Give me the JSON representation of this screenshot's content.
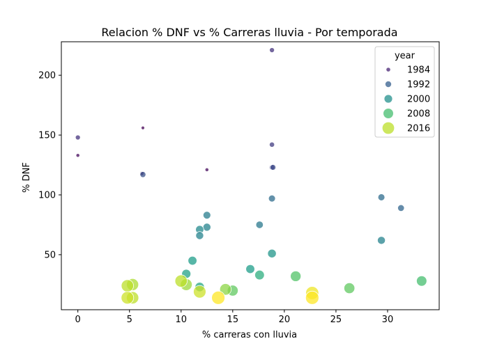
{
  "chart_data": {
    "type": "scatter",
    "title": "Relacion % DNF vs % Carreras lluvia - Por temporada",
    "xlabel": "% carreras con lluvia",
    "ylabel": "% DNF",
    "xlim": [
      -1.6,
      35.0
    ],
    "ylim": [
      4,
      228
    ],
    "xticks": [
      0,
      5,
      10,
      15,
      20,
      25,
      30
    ],
    "yticks": [
      50,
      100,
      150,
      200
    ],
    "grid": false,
    "legend": {
      "title": "year",
      "placement": "top-right",
      "entries": [
        {
          "label": "1984",
          "year": 1984
        },
        {
          "label": "1992",
          "year": 1992
        },
        {
          "label": "2000",
          "year": 2000
        },
        {
          "label": "2008",
          "year": 2008
        },
        {
          "label": "2016",
          "year": 2016
        }
      ]
    },
    "colormap": "viridis",
    "year_range": [
      1980,
      2020
    ],
    "points": [
      {
        "x": 0.0,
        "y": 133,
        "year": 1981
      },
      {
        "x": 6.3,
        "y": 156,
        "year": 1980
      },
      {
        "x": 12.5,
        "y": 121,
        "year": 1981
      },
      {
        "x": 6.2,
        "y": 118,
        "year": 1983
      },
      {
        "x": 18.8,
        "y": 221,
        "year": 1986
      },
      {
        "x": 0.0,
        "y": 148,
        "year": 1986
      },
      {
        "x": 18.8,
        "y": 142,
        "year": 1987
      },
      {
        "x": 18.8,
        "y": 123,
        "year": 1988
      },
      {
        "x": 18.9,
        "y": 123,
        "year": 1989
      },
      {
        "x": 6.3,
        "y": 117,
        "year": 1990
      },
      {
        "x": 31.3,
        "y": 89,
        "year": 1993
      },
      {
        "x": 29.4,
        "y": 98,
        "year": 1994
      },
      {
        "x": 18.8,
        "y": 97,
        "year": 1994
      },
      {
        "x": 17.6,
        "y": 75,
        "year": 1996
      },
      {
        "x": 12.5,
        "y": 83,
        "year": 1997
      },
      {
        "x": 29.4,
        "y": 62,
        "year": 1998
      },
      {
        "x": 12.5,
        "y": 73,
        "year": 1998
      },
      {
        "x": 11.8,
        "y": 71,
        "year": 1999
      },
      {
        "x": 11.8,
        "y": 66,
        "year": 1998
      },
      {
        "x": 18.8,
        "y": 51,
        "year": 2001
      },
      {
        "x": 11.1,
        "y": 45,
        "year": 2002
      },
      {
        "x": 16.7,
        "y": 38,
        "year": 2002
      },
      {
        "x": 10.5,
        "y": 34,
        "year": 2003
      },
      {
        "x": 17.6,
        "y": 33,
        "year": 2005
      },
      {
        "x": 11.8,
        "y": 23,
        "year": 2004
      },
      {
        "x": 33.3,
        "y": 28,
        "year": 2008
      },
      {
        "x": 21.1,
        "y": 32,
        "year": 2009
      },
      {
        "x": 26.3,
        "y": 22,
        "year": 2010
      },
      {
        "x": 15.0,
        "y": 20,
        "year": 2010
      },
      {
        "x": 10.5,
        "y": 25,
        "year": 2014
      },
      {
        "x": 14.3,
        "y": 21,
        "year": 2013
      },
      {
        "x": 5.3,
        "y": 25,
        "year": 2015
      },
      {
        "x": 4.8,
        "y": 24,
        "year": 2016
      },
      {
        "x": 10.0,
        "y": 28,
        "year": 2016
      },
      {
        "x": 11.8,
        "y": 19,
        "year": 2017
      },
      {
        "x": 5.3,
        "y": 14,
        "year": 2016
      },
      {
        "x": 4.8,
        "y": 14,
        "year": 2017
      },
      {
        "x": 22.7,
        "y": 18,
        "year": 2019
      },
      {
        "x": 22.7,
        "y": 14,
        "year": 2020
      },
      {
        "x": 13.6,
        "y": 14,
        "year": 2020
      }
    ]
  }
}
